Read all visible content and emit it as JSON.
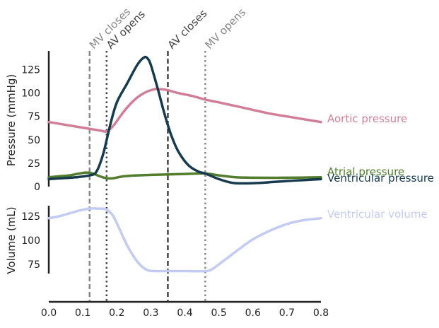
{
  "chart_data": [
    {
      "type": "line",
      "panel": "pressure",
      "ylabel": "Pressure (mmHg)",
      "ylim": [
        0,
        145
      ],
      "yticks": [
        0,
        25,
        50,
        75,
        100,
        125
      ],
      "grid": false,
      "legend": "right-of-plot inline labels",
      "series": [
        {
          "name": "Aortic pressure",
          "color": "#d17f97",
          "points": [
            [
              0.0,
              69
            ],
            [
              0.05,
              66
            ],
            [
              0.1,
              63
            ],
            [
              0.15,
              60
            ],
            [
              0.17,
              59
            ],
            [
              0.19,
              65
            ],
            [
              0.22,
              80
            ],
            [
              0.25,
              92
            ],
            [
              0.28,
              100
            ],
            [
              0.31,
              104
            ],
            [
              0.33,
              104
            ],
            [
              0.35,
              103
            ],
            [
              0.38,
              100
            ],
            [
              0.42,
              97
            ],
            [
              0.46,
              93
            ],
            [
              0.5,
              90
            ],
            [
              0.55,
              86
            ],
            [
              0.6,
              82
            ],
            [
              0.65,
              78
            ],
            [
              0.7,
              75
            ],
            [
              0.75,
              72
            ],
            [
              0.8,
              69
            ]
          ]
        },
        {
          "name": "Atrial pressure",
          "color": "#527d2d",
          "points": [
            [
              0.0,
              10
            ],
            [
              0.03,
              11
            ],
            [
              0.06,
              12
            ],
            [
              0.09,
              14
            ],
            [
              0.11,
              15
            ],
            [
              0.13,
              14
            ],
            [
              0.15,
              11
            ],
            [
              0.17,
              9
            ],
            [
              0.19,
              9
            ],
            [
              0.22,
              11
            ],
            [
              0.26,
              12
            ],
            [
              0.3,
              12.5
            ],
            [
              0.35,
              13
            ],
            [
              0.4,
              13.5
            ],
            [
              0.46,
              14
            ],
            [
              0.5,
              12
            ],
            [
              0.55,
              10
            ],
            [
              0.6,
              9.5
            ],
            [
              0.7,
              9.5
            ],
            [
              0.8,
              10
            ]
          ]
        },
        {
          "name": "Ventricular pressure",
          "color": "#163a4e",
          "points": [
            [
              0.0,
              8
            ],
            [
              0.04,
              9
            ],
            [
              0.08,
              10
            ],
            [
              0.12,
              12
            ],
            [
              0.14,
              16
            ],
            [
              0.16,
              35
            ],
            [
              0.18,
              65
            ],
            [
              0.2,
              90
            ],
            [
              0.23,
              110
            ],
            [
              0.26,
              130
            ],
            [
              0.28,
              138
            ],
            [
              0.29,
              137
            ],
            [
              0.3,
              130
            ],
            [
              0.32,
              105
            ],
            [
              0.34,
              78
            ],
            [
              0.36,
              55
            ],
            [
              0.38,
              38
            ],
            [
              0.41,
              23
            ],
            [
              0.44,
              16
            ],
            [
              0.46,
              14
            ],
            [
              0.5,
              8
            ],
            [
              0.54,
              4
            ],
            [
              0.58,
              3.5
            ],
            [
              0.62,
              4
            ],
            [
              0.66,
              5
            ],
            [
              0.7,
              6
            ],
            [
              0.75,
              7
            ],
            [
              0.8,
              8
            ]
          ]
        }
      ]
    },
    {
      "type": "line",
      "panel": "volume",
      "ylabel": "Volume (mL)",
      "xlabel": "",
      "xlim": [
        0.0,
        0.8
      ],
      "xticks": [
        "0.0",
        "0.1",
        "0.2",
        "0.3",
        "0.4",
        "0.5",
        "0.6",
        "0.7",
        "0.8"
      ],
      "ylim": [
        40,
        140
      ],
      "yticks": [
        75,
        100,
        125
      ],
      "grid": false,
      "legend": "right-of-plot inline labels",
      "series": [
        {
          "name": "Ventricular volume",
          "color": "#c3cbf2",
          "points": [
            [
              0.0,
              123
            ],
            [
              0.03,
              125
            ],
            [
              0.06,
              128
            ],
            [
              0.09,
              131
            ],
            [
              0.12,
              133
            ],
            [
              0.15,
              133
            ],
            [
              0.17,
              132
            ],
            [
              0.19,
              125
            ],
            [
              0.21,
              110
            ],
            [
              0.23,
              95
            ],
            [
              0.25,
              83
            ],
            [
              0.27,
              74
            ],
            [
              0.29,
              69
            ],
            [
              0.31,
              68
            ],
            [
              0.35,
              68
            ],
            [
              0.4,
              68
            ],
            [
              0.46,
              68
            ],
            [
              0.48,
              70
            ],
            [
              0.5,
              75
            ],
            [
              0.53,
              83
            ],
            [
              0.56,
              91
            ],
            [
              0.6,
              101
            ],
            [
              0.65,
              110
            ],
            [
              0.7,
              117
            ],
            [
              0.75,
              121
            ],
            [
              0.8,
              123
            ]
          ]
        }
      ]
    }
  ],
  "events": [
    {
      "label": "MV closes",
      "t": 0.12,
      "color": "#888888",
      "dash": "dashed"
    },
    {
      "label": "AV opens",
      "t": 0.17,
      "color": "#444444",
      "dash": "dotted"
    },
    {
      "label": "AV closes",
      "t": 0.35,
      "color": "#444444",
      "dash": "dashed"
    },
    {
      "label": "MV opens",
      "t": 0.46,
      "color": "#888888",
      "dash": "dotted"
    }
  ]
}
